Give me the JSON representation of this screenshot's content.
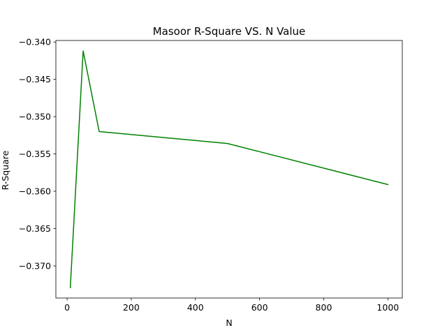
{
  "chart_data": {
    "type": "line",
    "title": "Masoor R-Square VS. N Value",
    "xlabel": "N",
    "ylabel": "R-Square",
    "xlim": [
      -35,
      1045
    ],
    "ylim": [
      -0.3743,
      -0.3398
    ],
    "xticks": [
      0,
      200,
      400,
      600,
      800,
      1000
    ],
    "xtick_labels": [
      "0",
      "200",
      "400",
      "600",
      "800",
      "1000"
    ],
    "yticks": [
      -0.34,
      -0.345,
      -0.35,
      -0.355,
      -0.36,
      -0.365,
      -0.37
    ],
    "ytick_labels": [
      "−0.340",
      "−0.345",
      "−0.350",
      "−0.355",
      "−0.360",
      "−0.365",
      "−0.370"
    ],
    "grid": false,
    "series": [
      {
        "color": "#008000",
        "x": [
          10,
          50,
          100,
          500,
          1000
        ],
        "y": [
          -0.3729,
          -0.3412,
          -0.352,
          -0.3536,
          -0.3591
        ]
      }
    ]
  }
}
